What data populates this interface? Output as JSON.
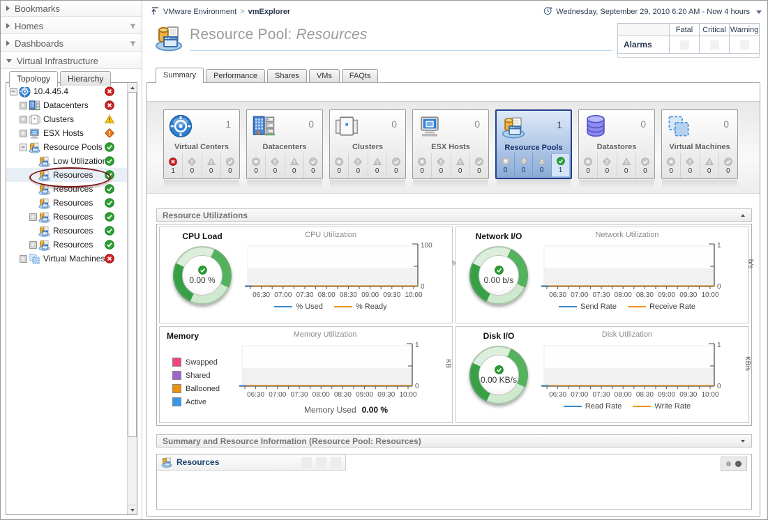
{
  "sidebar": {
    "sections": [
      {
        "label": "Bookmarks",
        "expanded": false,
        "has_filter": false
      },
      {
        "label": "Homes",
        "expanded": false,
        "has_filter": true
      },
      {
        "label": "Dashboards",
        "expanded": false,
        "has_filter": true
      },
      {
        "label": "Virtual Infrastructure",
        "expanded": true,
        "has_filter": false
      }
    ],
    "tabs": [
      {
        "label": "Topology",
        "active": true
      },
      {
        "label": "Hierarchy",
        "active": false
      }
    ],
    "tree": [
      {
        "label": "10.4.45.4",
        "icon": "virtual-center",
        "status": "fatal",
        "toggle": "minus",
        "level": 0,
        "selected": false
      },
      {
        "label": "Datacenters",
        "icon": "datacenter",
        "status": "fatal",
        "toggle": "plus",
        "level": 1,
        "selected": false
      },
      {
        "label": "Clusters",
        "icon": "cluster",
        "status": "warning",
        "toggle": "plus",
        "level": 1,
        "selected": false
      },
      {
        "label": "ESX Hosts",
        "icon": "esx-host",
        "status": "critical",
        "toggle": "plus",
        "level": 1,
        "selected": false
      },
      {
        "label": "Resource Pools",
        "icon": "resource-pool",
        "status": "normal",
        "toggle": "minus",
        "level": 1,
        "selected": false
      },
      {
        "label": "Low Utilization",
        "icon": "resource-pool",
        "status": "normal",
        "toggle": null,
        "level": 2,
        "selected": false
      },
      {
        "label": "Resources",
        "icon": "resource-pool",
        "status": "normal",
        "toggle": null,
        "level": 2,
        "selected": true,
        "annotated": true
      },
      {
        "label": "Resources",
        "icon": "resource-pool",
        "status": "normal",
        "toggle": null,
        "level": 2,
        "selected": false
      },
      {
        "label": "Resources",
        "icon": "resource-pool",
        "status": "normal",
        "toggle": null,
        "level": 2,
        "selected": false
      },
      {
        "label": "Resources",
        "icon": "resource-pool",
        "status": "normal",
        "toggle": "plus",
        "level": 2,
        "selected": false
      },
      {
        "label": "Resources",
        "icon": "resource-pool",
        "status": "normal",
        "toggle": null,
        "level": 2,
        "selected": false
      },
      {
        "label": "Resources",
        "icon": "resource-pool",
        "status": "normal",
        "toggle": "plus",
        "level": 2,
        "selected": false
      },
      {
        "label": "Virtual Machines",
        "icon": "virtual-machine",
        "status": "fatal",
        "toggle": "plus",
        "level": 1,
        "selected": false
      }
    ]
  },
  "topbar": {
    "breadcrumb_root": "VMware Environment",
    "breadcrumb_separator": ">",
    "breadcrumb_current": "vmExplorer",
    "time_range": "Wednesday, September 29, 2010 6:20 AM - Now 4 hours"
  },
  "page": {
    "title_prefix": "Resource Pool:",
    "title_name": "Resources"
  },
  "alarms": {
    "label": "Alarms",
    "columns": [
      "Fatal",
      "Critical",
      "Warning"
    ]
  },
  "main_tabs": [
    {
      "label": "Summary",
      "active": true
    },
    {
      "label": "Performance",
      "active": false
    },
    {
      "label": "Shares",
      "active": false
    },
    {
      "label": "VMs",
      "active": false
    },
    {
      "label": "FAQts",
      "active": false
    }
  ],
  "tiles": [
    {
      "label": "Virtual Centers",
      "icon": "virtual-center",
      "count": "1",
      "selected": false,
      "statuses": [
        {
          "type": "fatal",
          "count": "1",
          "active": true
        },
        {
          "type": "critical",
          "count": "0",
          "active": false
        },
        {
          "type": "warning",
          "count": "0",
          "active": false
        },
        {
          "type": "normal",
          "count": "0",
          "active": false
        }
      ]
    },
    {
      "label": "Datacenters",
      "icon": "datacenter",
      "count": "0",
      "selected": false,
      "statuses": [
        {
          "type": "fatal",
          "count": "0",
          "active": false
        },
        {
          "type": "critical",
          "count": "0",
          "active": false
        },
        {
          "type": "warning",
          "count": "0",
          "active": false
        },
        {
          "type": "normal",
          "count": "0",
          "active": false
        }
      ]
    },
    {
      "label": "Clusters",
      "icon": "cluster",
      "count": "0",
      "selected": false,
      "statuses": [
        {
          "type": "fatal",
          "count": "0",
          "active": false
        },
        {
          "type": "critical",
          "count": "0",
          "active": false
        },
        {
          "type": "warning",
          "count": "0",
          "active": false
        },
        {
          "type": "normal",
          "count": "0",
          "active": false
        }
      ]
    },
    {
      "label": "ESX Hosts",
      "icon": "esx-host",
      "count": "0",
      "selected": false,
      "statuses": [
        {
          "type": "fatal",
          "count": "0",
          "active": false
        },
        {
          "type": "critical",
          "count": "0",
          "active": false
        },
        {
          "type": "warning",
          "count": "0",
          "active": false
        },
        {
          "type": "normal",
          "count": "0",
          "active": false
        }
      ]
    },
    {
      "label": "Resource Pools",
      "icon": "resource-pool",
      "count": "1",
      "selected": true,
      "statuses": [
        {
          "type": "fatal",
          "count": "0",
          "active": false
        },
        {
          "type": "critical",
          "count": "0",
          "active": false
        },
        {
          "type": "warning",
          "count": "0",
          "active": false
        },
        {
          "type": "normal",
          "count": "1",
          "active": true,
          "highlighted": true
        }
      ]
    },
    {
      "label": "Datastores",
      "icon": "datastore",
      "count": "0",
      "selected": false,
      "statuses": [
        {
          "type": "fatal",
          "count": "0",
          "active": false
        },
        {
          "type": "critical",
          "count": "0",
          "active": false
        },
        {
          "type": "warning",
          "count": "0",
          "active": false
        },
        {
          "type": "normal",
          "count": "0",
          "active": false
        }
      ]
    },
    {
      "label": "Virtual Machines",
      "icon": "virtual-machine",
      "count": "0",
      "selected": false,
      "statuses": [
        {
          "type": "fatal",
          "count": "0",
          "active": false
        },
        {
          "type": "critical",
          "count": "0",
          "active": false
        },
        {
          "type": "warning",
          "count": "0",
          "active": false
        },
        {
          "type": "normal",
          "count": "0",
          "active": false
        }
      ]
    }
  ],
  "section_headers": {
    "resource_utilizations": "Resource Utilizations",
    "summary_info": "Summary and Resource Information (Resource Pool: Resources)"
  },
  "panels": {
    "cpu": {
      "title": "CPU Load",
      "gauge_value": "0.00 %"
    },
    "network": {
      "title": "Network I/O",
      "gauge_value": "0.00 b/s"
    },
    "memory": {
      "title": "Memory",
      "footer_label": "Memory Used",
      "footer_value": "0.00 %"
    },
    "disk": {
      "title": "Disk I/O",
      "gauge_value": "0.00 KB/s"
    }
  },
  "bottom_panel": {
    "title": "Resources"
  },
  "chart_data": [
    {
      "id": "cpu",
      "type": "line",
      "title": "CPU Utilization",
      "ylabel": "%",
      "ylim": [
        0,
        100
      ],
      "ytick_labels": [
        "0",
        "100"
      ],
      "x_ticks": [
        "06:30",
        "07:00",
        "07:30",
        "08:00",
        "08:30",
        "09:00",
        "09:30",
        "10:00"
      ],
      "series": [
        {
          "name": "% Used",
          "color": "#3a8ac8",
          "values": [
            0,
            0,
            0,
            0,
            0,
            0,
            0,
            0
          ]
        },
        {
          "name": "% Ready",
          "color": "#f0941e",
          "values": [
            0,
            0,
            0,
            0,
            0,
            0,
            0,
            0
          ]
        }
      ],
      "legend": "bottom"
    },
    {
      "id": "network",
      "type": "line",
      "title": "Network Utilization",
      "ylabel": "b/s",
      "ylim": [
        0,
        1
      ],
      "ytick_labels": [
        "0",
        "1"
      ],
      "x_ticks": [
        "06:30",
        "07:00",
        "07:30",
        "08:00",
        "08:30",
        "09:00",
        "09:30",
        "10:00"
      ],
      "series": [
        {
          "name": "Send Rate",
          "color": "#3a8ac8",
          "values": [
            0,
            0,
            0,
            0,
            0,
            0,
            0,
            0
          ]
        },
        {
          "name": "Receive Rate",
          "color": "#f0941e",
          "values": [
            0,
            0,
            0,
            0,
            0,
            0,
            0,
            0
          ]
        }
      ],
      "legend": "bottom"
    },
    {
      "id": "memory",
      "type": "line",
      "title": "Memory Utilization",
      "ylabel": "KB",
      "ylim": [
        0,
        1
      ],
      "ytick_labels": [
        "0",
        "1"
      ],
      "x_ticks": [
        "06:30",
        "07:00",
        "07:30",
        "08:00",
        "08:30",
        "09:00",
        "09:30",
        "10:00"
      ],
      "series": [
        {
          "name": "Swapped",
          "color": "#f0457d",
          "values": [
            0,
            0,
            0,
            0,
            0,
            0,
            0,
            0
          ]
        },
        {
          "name": "Shared",
          "color": "#9a66cc",
          "values": [
            0,
            0,
            0,
            0,
            0,
            0,
            0,
            0
          ]
        },
        {
          "name": "Ballooned",
          "color": "#e8920a",
          "values": [
            0,
            0,
            0,
            0,
            0,
            0,
            0,
            0
          ]
        },
        {
          "name": "Active",
          "color": "#3399f0",
          "values": [
            0,
            0,
            0,
            0,
            0,
            0,
            0,
            0
          ]
        }
      ],
      "legend": "left"
    },
    {
      "id": "disk",
      "type": "line",
      "title": "Disk Utilization",
      "ylabel": "KB/s",
      "ylim": [
        0,
        1
      ],
      "ytick_labels": [
        "0",
        "1"
      ],
      "x_ticks": [
        "06:30",
        "07:00",
        "07:30",
        "08:00",
        "08:30",
        "09:00",
        "09:30",
        "10:00"
      ],
      "series": [
        {
          "name": "Read Rate",
          "color": "#3a8ac8",
          "values": [
            0,
            0,
            0,
            0,
            0,
            0,
            0,
            0
          ]
        },
        {
          "name": "Write Rate",
          "color": "#f0941e",
          "values": [
            0,
            0,
            0,
            0,
            0,
            0,
            0,
            0
          ]
        }
      ],
      "legend": "bottom"
    }
  ]
}
